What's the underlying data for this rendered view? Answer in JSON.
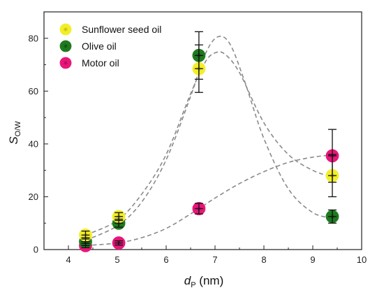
{
  "chart_data": {
    "type": "scatter",
    "xlabel": {
      "main": "d",
      "sub": "P",
      "suffix": " (nm)"
    },
    "ylabel": {
      "main": "S",
      "sub": "O/W"
    },
    "xlim": [
      3.5,
      10
    ],
    "ylim": [
      0,
      90
    ],
    "x_ticks": [
      "4",
      "5",
      "6",
      "7",
      "8",
      "9",
      "10"
    ],
    "y_ticks": [
      "0",
      "20",
      "40",
      "60",
      "80"
    ],
    "grid": false,
    "legend_position": "top-left",
    "fit_line_style": "dashed",
    "series": [
      {
        "name": "Sunflower seed oil",
        "color": "#f2ee2a",
        "center_color": "#b9b600",
        "points": [
          {
            "x": 4.35,
            "y": 5.5,
            "err": 1.5
          },
          {
            "x": 5.03,
            "y": 12.5,
            "err": 1.5
          },
          {
            "x": 6.67,
            "y": 68.5,
            "err": 9.0
          },
          {
            "x": 9.4,
            "y": 28.0,
            "err": 8.0
          }
        ],
        "fit": [
          [
            4.35,
            5.5
          ],
          [
            5.0,
            11
          ],
          [
            5.5,
            21
          ],
          [
            6.0,
            36
          ],
          [
            6.5,
            59
          ],
          [
            6.8,
            71
          ],
          [
            7.0,
            74.5
          ],
          [
            7.2,
            74
          ],
          [
            7.5,
            67
          ],
          [
            8.0,
            48
          ],
          [
            8.5,
            36
          ],
          [
            9.0,
            30
          ],
          [
            9.4,
            27.5
          ]
        ]
      },
      {
        "name": "Olive oil",
        "color": "#1f7a1f",
        "center_color": "#0b4a0b",
        "points": [
          {
            "x": 4.35,
            "y": 3.0,
            "err": 1.5
          },
          {
            "x": 5.03,
            "y": 10.0,
            "err": 1.5
          },
          {
            "x": 6.67,
            "y": 73.5,
            "err": 9.0
          },
          {
            "x": 9.4,
            "y": 12.5,
            "err": 2.5
          }
        ],
        "fit": [
          [
            4.35,
            3.5
          ],
          [
            5.0,
            9
          ],
          [
            5.5,
            18
          ],
          [
            6.0,
            34
          ],
          [
            6.5,
            58
          ],
          [
            6.8,
            74
          ],
          [
            7.05,
            80.5
          ],
          [
            7.3,
            78
          ],
          [
            7.6,
            64
          ],
          [
            8.0,
            42
          ],
          [
            8.5,
            23
          ],
          [
            9.0,
            14
          ],
          [
            9.4,
            12
          ]
        ]
      },
      {
        "name": "Motor oil",
        "color": "#e8167a",
        "center_color": "#9e0e52",
        "points": [
          {
            "x": 4.35,
            "y": 1.5,
            "err": 0.8
          },
          {
            "x": 5.03,
            "y": 2.5,
            "err": 0.8
          },
          {
            "x": 6.67,
            "y": 15.5,
            "err": 2.0
          },
          {
            "x": 9.4,
            "y": 35.5,
            "err": 10.0
          }
        ],
        "fit": [
          [
            4.35,
            1.5
          ],
          [
            5.0,
            2.5
          ],
          [
            5.5,
            4.5
          ],
          [
            6.0,
            8
          ],
          [
            6.5,
            13.5
          ],
          [
            7.0,
            19.5
          ],
          [
            7.5,
            25
          ],
          [
            8.0,
            29.5
          ],
          [
            8.5,
            33
          ],
          [
            9.0,
            35
          ],
          [
            9.4,
            35.8
          ]
        ]
      }
    ]
  }
}
